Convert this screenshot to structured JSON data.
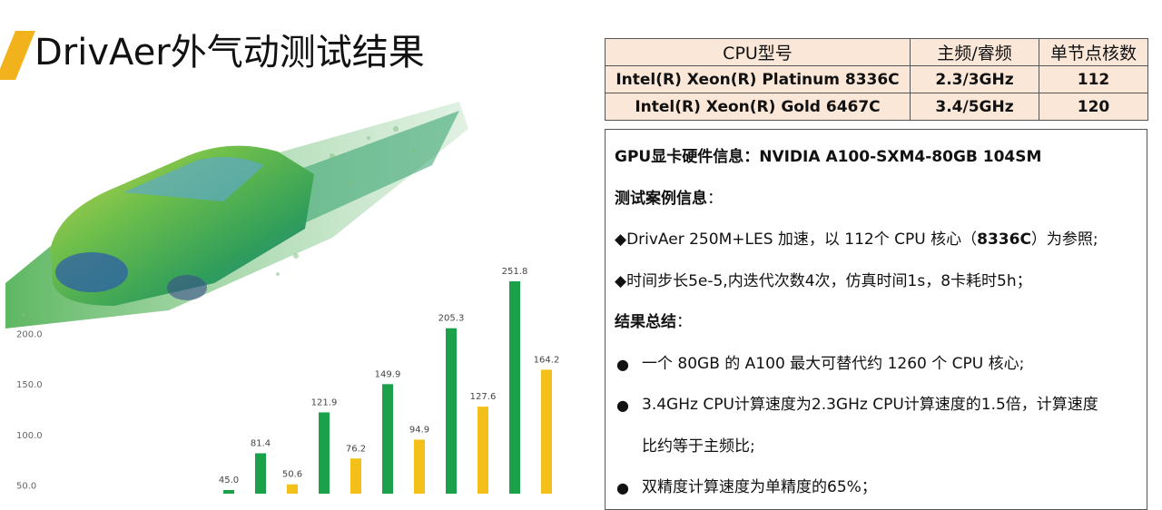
{
  "title": "DrivAer外气动测试结果",
  "cpu_table": {
    "headers": [
      "CPU型号",
      "主频/睿频",
      "单节点核数"
    ],
    "rows": [
      [
        "Intel(R) Xeon(R) Platinum 8336C",
        "2.3/3GHz",
        "112"
      ],
      [
        "Intel(R) Xeon(R) Gold 6467C",
        "3.4/5GHz",
        "120"
      ]
    ]
  },
  "info": {
    "gpu": "GPU显卡硬件信息：NVIDIA A100-SXM4-80GB 104SM",
    "case_label": "测试案例信息",
    "colon": "：",
    "case_line1_a": "◆DrivAer 250M+LES 加速，以 112个 CPU 核心（",
    "case_line1_b": "8336C",
    "case_line1_c": "）为参照;",
    "case_line2": "◆时间步长5e-5,内迭代次数4次，仿真时间1s，8卡耗时5h；",
    "summary_label": "结果总结",
    "bullet": "●",
    "summary_1": "一个 80GB 的 A100 最大可替代约 1260 个 CPU 核心;",
    "summary_2a": "3.4GHz CPU计算速度为2.3GHz CPU计算速度的1.5倍，计算速度",
    "summary_2b": "比约等于主频比;",
    "summary_3": "双精度计算速度为单精度的65%；"
  },
  "chart_data": {
    "type": "bar",
    "yticks": [
      "50.0",
      "100.0",
      "150.0",
      "200.0"
    ],
    "ylim": [
      0,
      270
    ],
    "bars": [
      {
        "label": "45.0",
        "value": 45.0,
        "color": "#1aa14a"
      },
      {
        "label": "81.4",
        "value": 81.4,
        "color": "#1aa14a"
      },
      {
        "label": "50.6",
        "value": 50.6,
        "color": "#f2c018"
      },
      {
        "label": "121.9",
        "value": 121.9,
        "color": "#1aa14a"
      },
      {
        "label": "76.2",
        "value": 76.2,
        "color": "#f2c018"
      },
      {
        "label": "149.9",
        "value": 149.9,
        "color": "#1aa14a"
      },
      {
        "label": "94.9",
        "value": 94.9,
        "color": "#f2c018"
      },
      {
        "label": "205.3",
        "value": 205.3,
        "color": "#1aa14a"
      },
      {
        "label": "127.6",
        "value": 127.6,
        "color": "#f2c018"
      },
      {
        "label": "251.8",
        "value": 251.8,
        "color": "#1aa14a"
      },
      {
        "label": "164.2",
        "value": 164.2,
        "color": "#f2c018"
      }
    ]
  },
  "colors": {
    "accent": "#f2b21b",
    "table_bg": "#fbe7d8"
  }
}
